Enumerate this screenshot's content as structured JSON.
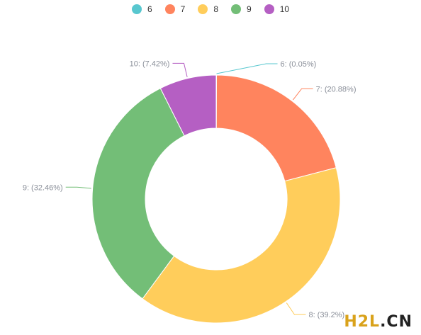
{
  "chart_data": {
    "type": "pie",
    "donut": true,
    "legend_position": "top-center",
    "categories": [
      "6",
      "7",
      "8",
      "9",
      "10"
    ],
    "values": [
      0.05,
      20.88,
      39.2,
      32.46,
      7.42
    ],
    "labels": [
      "6: (0.05%)",
      "7: (20.88%)",
      "8: (39.2%)",
      "9: (32.46%)",
      "10: (7.42%)"
    ],
    "colors": [
      "#58c7cf",
      "#ff845e",
      "#ffcd5b",
      "#73be77",
      "#b55fc3"
    ]
  },
  "watermark": {
    "part1": "H2L",
    "part2": ".CN"
  }
}
